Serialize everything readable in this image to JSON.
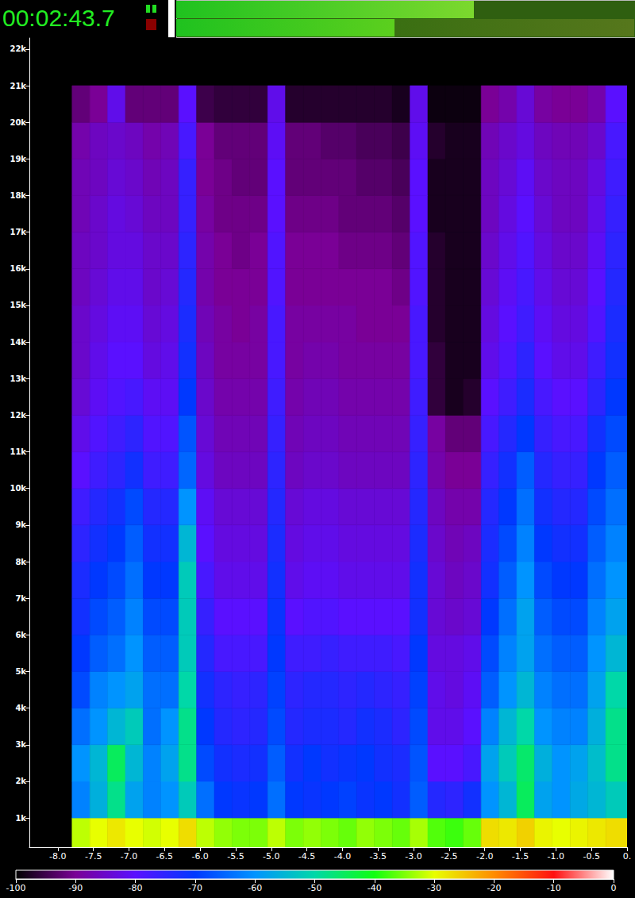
{
  "chart_data": {
    "type": "heatmap",
    "annotation": "00:02:43.7",
    "xlim": [
      -8.4,
      0
    ],
    "xticks": [
      {
        "value": -8,
        "label": "-8.0"
      },
      -7.5,
      {
        "value": -7,
        "label": "-7.0"
      },
      -6.5,
      {
        "value": -6,
        "label": "-6.0"
      },
      -5.5,
      {
        "value": -5,
        "label": "-5.0"
      },
      -4.5,
      {
        "value": -4,
        "label": "-4.0"
      },
      -3.5,
      {
        "value": -3,
        "label": "-3.0"
      },
      -2.5,
      {
        "value": -2,
        "label": "-2.0"
      },
      -1.5,
      {
        "value": -1,
        "label": "-1.0"
      },
      -0.5,
      {
        "value": 0,
        "label": "0."
      }
    ],
    "ylim": [
      200,
      22300
    ],
    "yticks": [
      {
        "value": 1000,
        "label": "1k"
      },
      {
        "value": 2000,
        "label": "2k"
      },
      {
        "value": 3000,
        "label": "3k"
      },
      {
        "value": 4000,
        "label": "4k"
      },
      {
        "value": 5000,
        "label": "5k"
      },
      {
        "value": 6000,
        "label": "6k"
      },
      {
        "value": 7000,
        "label": "7k"
      },
      {
        "value": 8000,
        "label": "8k"
      },
      {
        "value": 9000,
        "label": "9k"
      },
      {
        "value": 10000,
        "label": "10k"
      },
      {
        "value": 11000,
        "label": "11k"
      },
      {
        "value": 12000,
        "label": "12k"
      },
      {
        "value": 13000,
        "label": "13k"
      },
      {
        "value": 14000,
        "label": "14k"
      },
      {
        "value": 15000,
        "label": "15k"
      },
      {
        "value": 16000,
        "label": "16k"
      },
      {
        "value": 17000,
        "label": "17k"
      },
      {
        "value": 18000,
        "label": "18k"
      },
      {
        "value": 19000,
        "label": "19k"
      },
      {
        "value": 20000,
        "label": "20k"
      },
      {
        "value": 21000,
        "label": "21k"
      },
      {
        "value": 22000,
        "label": "22k"
      }
    ],
    "x_edges": [
      -7.8,
      -7.55,
      -7.3,
      -7.05,
      -6.8,
      -6.55,
      -6.3,
      -6.05,
      -5.8,
      -5.55,
      -5.3,
      -5.05,
      -4.8,
      -4.55,
      -4.3,
      -4.05,
      -3.8,
      -3.55,
      -3.3,
      -3.05,
      -2.8,
      -2.55,
      -2.3,
      -2.05,
      -1.8,
      -1.55,
      -1.3,
      -1.05,
      -0.8,
      -0.55,
      -0.3,
      0
    ],
    "y_edges": [
      200,
      1000,
      2000,
      3000,
      4000,
      5000,
      6000,
      7000,
      8000,
      9000,
      10000,
      11000,
      12000,
      13000,
      14000,
      15000,
      16000,
      17000,
      18000,
      19000,
      20000,
      21000
    ],
    "cells": [
      [
        -32,
        -30,
        -28,
        -30,
        -31,
        -30,
        -27,
        -32,
        -34,
        -35,
        -35,
        -32,
        -35,
        -34,
        -35,
        -36,
        -34,
        -35,
        -36,
        -33,
        -37,
        -38,
        -36,
        -27,
        -28,
        -26,
        -29,
        -30,
        -29,
        -28,
        -27
      ],
      [
        -62,
        -56,
        -48,
        -58,
        -62,
        -60,
        -52,
        -64,
        -70,
        -71,
        -70,
        -64,
        -70,
        -71,
        -70,
        -69,
        -71,
        -70,
        -72,
        -66,
        -74,
        -75,
        -72,
        -60,
        -55,
        -45,
        -58,
        -60,
        -57,
        -55,
        -52
      ],
      [
        -60,
        -55,
        -45,
        -55,
        -62,
        -58,
        -48,
        -68,
        -72,
        -73,
        -72,
        -66,
        -72,
        -70,
        -72,
        -71,
        -70,
        -72,
        -73,
        -67,
        -80,
        -80,
        -78,
        -58,
        -52,
        -46,
        -56,
        -60,
        -58,
        -54,
        -48
      ],
      [
        -64,
        -60,
        -55,
        -52,
        -64,
        -60,
        -48,
        -70,
        -74,
        -75,
        -74,
        -68,
        -74,
        -73,
        -73,
        -74,
        -72,
        -73,
        -75,
        -68,
        -82,
        -82,
        -80,
        -62,
        -55,
        -50,
        -60,
        -62,
        -62,
        -56,
        -48
      ],
      [
        -68,
        -62,
        -60,
        -58,
        -64,
        -64,
        -50,
        -72,
        -75,
        -76,
        -75,
        -69,
        -75,
        -74,
        -74,
        -75,
        -74,
        -75,
        -76,
        -69,
        -82,
        -83,
        -81,
        -66,
        -60,
        -55,
        -62,
        -64,
        -64,
        -58,
        -50
      ],
      [
        -70,
        -66,
        -64,
        -60,
        -66,
        -66,
        -52,
        -74,
        -78,
        -78,
        -78,
        -70,
        -77,
        -77,
        -76,
        -77,
        -77,
        -77,
        -78,
        -70,
        -83,
        -83,
        -82,
        -68,
        -62,
        -58,
        -64,
        -66,
        -66,
        -60,
        -55
      ],
      [
        -72,
        -68,
        -66,
        -62,
        -68,
        -68,
        -52,
        -76,
        -80,
        -80,
        -80,
        -71,
        -80,
        -79,
        -79,
        -80,
        -80,
        -80,
        -80,
        -72,
        -84,
        -85,
        -84,
        -70,
        -64,
        -58,
        -66,
        -68,
        -68,
        -62,
        -58
      ],
      [
        -73,
        -70,
        -68,
        -64,
        -70,
        -70,
        -52,
        -78,
        -82,
        -82,
        -82,
        -72,
        -82,
        -81,
        -81,
        -82,
        -82,
        -82,
        -82,
        -72,
        -84,
        -86,
        -85,
        -72,
        -66,
        -60,
        -68,
        -70,
        -70,
        -64,
        -60
      ],
      [
        -75,
        -72,
        -70,
        -66,
        -72,
        -72,
        -55,
        -80,
        -83,
        -83,
        -83,
        -73,
        -83,
        -82,
        -82,
        -83,
        -83,
        -83,
        -83,
        -73,
        -85,
        -87,
        -86,
        -73,
        -68,
        -62,
        -70,
        -72,
        -72,
        -66,
        -62
      ],
      [
        -77,
        -74,
        -72,
        -68,
        -74,
        -74,
        -60,
        -81,
        -84,
        -84,
        -84,
        -74,
        -84,
        -83,
        -83,
        -84,
        -84,
        -84,
        -84,
        -74,
        -86,
        -88,
        -88,
        -74,
        -70,
        -64,
        -72,
        -74,
        -74,
        -68,
        -64
      ],
      [
        -80,
        -77,
        -75,
        -72,
        -77,
        -77,
        -65,
        -83,
        -86,
        -86,
        -86,
        -75,
        -86,
        -85,
        -85,
        -86,
        -86,
        -86,
        -86,
        -75,
        -88,
        -90,
        -90,
        -76,
        -72,
        -66,
        -74,
        -76,
        -76,
        -70,
        -66
      ],
      [
        -82,
        -79,
        -77,
        -75,
        -79,
        -79,
        -67,
        -84,
        -87,
        -87,
        -87,
        -76,
        -87,
        -86,
        -86,
        -87,
        -87,
        -87,
        -87,
        -76,
        -89,
        -92,
        -92,
        -78,
        -74,
        -70,
        -76,
        -78,
        -78,
        -72,
        -68
      ],
      [
        -84,
        -81,
        -79,
        -78,
        -81,
        -81,
        -70,
        -85,
        -88,
        -88,
        -88,
        -77,
        -88,
        -87,
        -87,
        -88,
        -88,
        -88,
        -88,
        -77,
        -96,
        -98,
        -97,
        -80,
        -77,
        -73,
        -78,
        -80,
        -80,
        -75,
        -70
      ],
      [
        -85,
        -82,
        -80,
        -80,
        -83,
        -82,
        -72,
        -86,
        -89,
        -89,
        -89,
        -78,
        -89,
        -88,
        -88,
        -89,
        -89,
        -89,
        -89,
        -78,
        -96,
        -98,
        -98,
        -82,
        -79,
        -75,
        -80,
        -82,
        -82,
        -77,
        -72
      ],
      [
        -85,
        -83,
        -81,
        -81,
        -84,
        -83,
        -73,
        -87,
        -89,
        -90,
        -89,
        -78,
        -89,
        -89,
        -89,
        -89,
        -90,
        -90,
        -90,
        -78,
        -97,
        -98,
        -98,
        -83,
        -80,
        -77,
        -81,
        -83,
        -83,
        -79,
        -73
      ],
      [
        -86,
        -84,
        -82,
        -82,
        -85,
        -84,
        -74,
        -88,
        -90,
        -90,
        -90,
        -79,
        -90,
        -90,
        -90,
        -90,
        -90,
        -90,
        -91,
        -79,
        -97,
        -98,
        -98,
        -84,
        -81,
        -78,
        -82,
        -84,
        -84,
        -80,
        -74
      ],
      [
        -86,
        -85,
        -83,
        -83,
        -85,
        -85,
        -75,
        -88,
        -90,
        -91,
        -90,
        -79,
        -90,
        -90,
        -90,
        -91,
        -91,
        -91,
        -92,
        -79,
        -97,
        -98,
        -98,
        -85,
        -82,
        -79,
        -83,
        -85,
        -85,
        -81,
        -75
      ],
      [
        -87,
        -85,
        -83,
        -84,
        -86,
        -86,
        -76,
        -89,
        -91,
        -91,
        -91,
        -80,
        -91,
        -91,
        -91,
        -92,
        -92,
        -92,
        -93,
        -80,
        -98,
        -98,
        -98,
        -86,
        -83,
        -80,
        -84,
        -86,
        -86,
        -82,
        -76
      ],
      [
        -87,
        -86,
        -84,
        -85,
        -87,
        -86,
        -76,
        -90,
        -91,
        -92,
        -92,
        -80,
        -92,
        -92,
        -92,
        -92,
        -93,
        -93,
        -94,
        -80,
        -98,
        -98,
        -98,
        -86,
        -84,
        -81,
        -85,
        -86,
        -86,
        -83,
        -77
      ],
      [
        -88,
        -86,
        -85,
        -86,
        -88,
        -87,
        -78,
        -90,
        -92,
        -92,
        -92,
        -81,
        -92,
        -92,
        -93,
        -93,
        -94,
        -94,
        -95,
        -81,
        -97,
        -98,
        -98,
        -87,
        -85,
        -83,
        -86,
        -87,
        -87,
        -85,
        -78
      ],
      [
        -92,
        -90,
        -82,
        -92,
        -92,
        -92,
        -80,
        -95,
        -96,
        -96,
        -96,
        -82,
        -97,
        -97,
        -97,
        -97,
        -97,
        -97,
        -98,
        -82,
        -99,
        -99,
        -99,
        -90,
        -88,
        -84,
        -89,
        -90,
        -90,
        -88,
        -80
      ]
    ],
    "colorbar": {
      "range": [
        -100,
        0
      ],
      "ticks": [
        -100,
        -90,
        -80,
        -70,
        -60,
        -50,
        -40,
        -30,
        -20,
        -10,
        0
      ]
    }
  }
}
